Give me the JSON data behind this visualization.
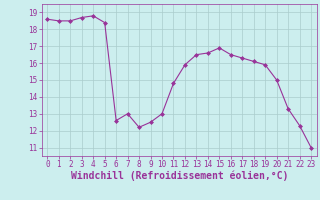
{
  "x": [
    0,
    1,
    2,
    3,
    4,
    5,
    6,
    7,
    8,
    9,
    10,
    11,
    12,
    13,
    14,
    15,
    16,
    17,
    18,
    19,
    20,
    21,
    22,
    23
  ],
  "y": [
    18.6,
    18.5,
    18.5,
    18.7,
    18.8,
    18.4,
    12.6,
    13.0,
    12.2,
    12.5,
    13.0,
    14.8,
    15.9,
    16.5,
    16.6,
    16.9,
    16.5,
    16.3,
    16.1,
    15.9,
    15.0,
    13.3,
    12.3,
    11.0
  ],
  "line_color": "#993399",
  "marker": "D",
  "marker_size": 2.0,
  "bg_color": "#cceeee",
  "grid_color": "#aacccc",
  "xlabel": "Windchill (Refroidissement éolien,°C)",
  "ylim": [
    10.5,
    19.5
  ],
  "xlim": [
    -0.5,
    23.5
  ],
  "yticks": [
    11,
    12,
    13,
    14,
    15,
    16,
    17,
    18,
    19
  ],
  "xticks": [
    0,
    1,
    2,
    3,
    4,
    5,
    6,
    7,
    8,
    9,
    10,
    11,
    12,
    13,
    14,
    15,
    16,
    17,
    18,
    19,
    20,
    21,
    22,
    23
  ],
  "tick_fontsize": 5.5,
  "xlabel_fontsize": 7.0
}
